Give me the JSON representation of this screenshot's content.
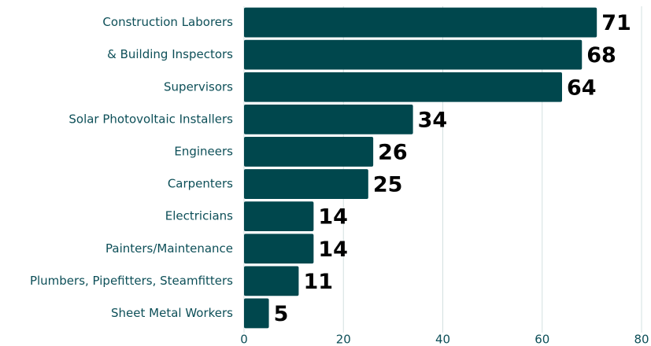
{
  "chart_data": {
    "type": "bar",
    "orientation": "horizontal",
    "categories": [
      "Construction Laborers",
      "& Building Inspectors",
      "Supervisors",
      "Solar Photovoltaic Installers",
      "Engineers",
      "Carpenters",
      "Electricians",
      "Painters/Maintenance",
      "Plumbers, Pipefitters, Steamfitters",
      "Sheet Metal Workers"
    ],
    "values": [
      71,
      68,
      64,
      34,
      26,
      25,
      14,
      14,
      11,
      5
    ],
    "color": "#00474d",
    "xlim": [
      0,
      80
    ],
    "xticks": [
      0,
      20,
      40,
      60,
      80
    ],
    "grid": true
  }
}
